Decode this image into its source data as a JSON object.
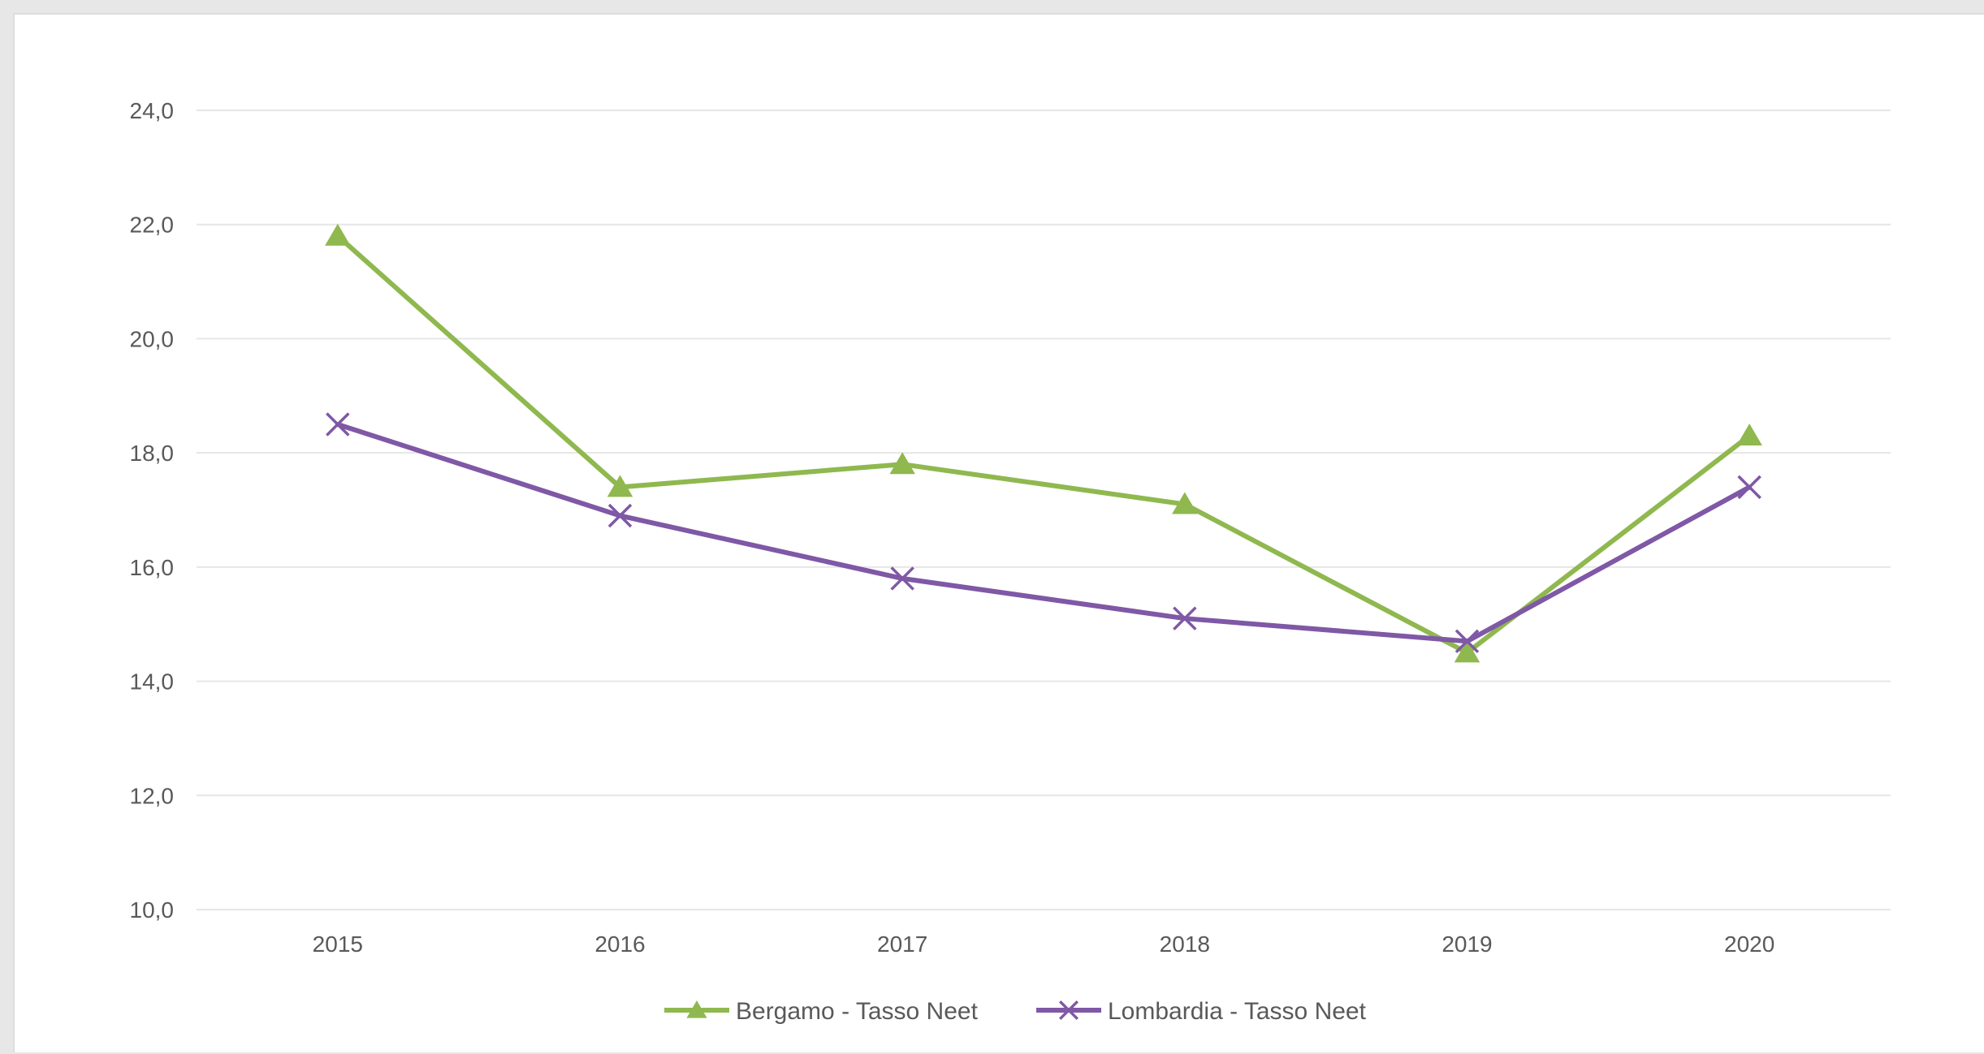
{
  "chart_data": {
    "type": "line",
    "title": "",
    "xlabel": "",
    "ylabel": "",
    "x": [
      "2015",
      "2016",
      "2017",
      "2018",
      "2019",
      "2020"
    ],
    "ylim": [
      10,
      24
    ],
    "y_ticks": [
      "10,0",
      "12,0",
      "14,0",
      "16,0",
      "18,0",
      "20,0",
      "22,0",
      "24,0"
    ],
    "grid": true,
    "legend_position": "bottom",
    "series": [
      {
        "name": "Bergamo - Tasso Neet",
        "values": [
          21.8,
          17.4,
          17.8,
          17.1,
          14.5,
          18.3
        ],
        "color": "#8fb84f",
        "marker": "triangle"
      },
      {
        "name": "Lombardia - Tasso Neet",
        "values": [
          18.5,
          16.9,
          15.8,
          15.1,
          14.7,
          17.4
        ],
        "color": "#7f58a6",
        "marker": "x"
      }
    ]
  }
}
